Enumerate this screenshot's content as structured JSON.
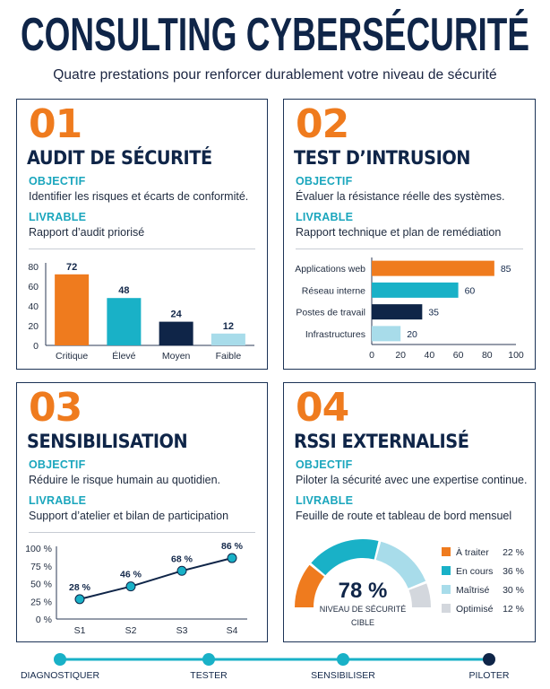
{
  "header": {
    "title": "CONSULTING CYBERSÉCURITÉ",
    "subtitle": "Quatre prestations pour renforcer durablement votre niveau de sécurité"
  },
  "colors": {
    "orange": "#ef7b1e",
    "teal": "#19b1c7",
    "navy": "#0f2548",
    "light_blue": "#a8dcea",
    "grey": "#d3d7dd"
  },
  "cards": [
    {
      "number": "01",
      "title": "AUDIT DE SÉCURITÉ",
      "objective_label": "OBJECTIF",
      "objective": "Identifier les risques et écarts de conformité.",
      "deliverable_label": "LIVRABLE",
      "deliverable": "Rapport d’audit priorisé"
    },
    {
      "number": "02",
      "title": "TEST D’INTRUSION",
      "objective_label": "OBJECTIF",
      "objective": "Évaluer la résistance réelle des systèmes.",
      "deliverable_label": "LIVRABLE",
      "deliverable": "Rapport technique et plan de remédiation"
    },
    {
      "number": "03",
      "title": "SENSIBILISATION",
      "objective_label": "OBJECTIF",
      "objective": "Réduire le risque humain au quotidien.",
      "deliverable_label": "LIVRABLE",
      "deliverable": "Support d’atelier et bilan de participation"
    },
    {
      "number": "04",
      "title": "RSSI EXTERNALISÉ",
      "objective_label": "OBJECTIF",
      "objective": "Piloter la sécurité avec une expertise continue.",
      "deliverable_label": "LIVRABLE",
      "deliverable": "Feuille de route et tableau de bord mensuel"
    }
  ],
  "chart_data": [
    {
      "type": "bar",
      "categories": [
        "Critique",
        "Élevé",
        "Moyen",
        "Faible"
      ],
      "values": [
        72,
        48,
        24,
        12
      ],
      "value_labels": [
        "72",
        "48",
        "24",
        "12"
      ],
      "colors": [
        "#ef7b1e",
        "#19b1c7",
        "#0f2548",
        "#a8dcea"
      ],
      "ylim": [
        0,
        80
      ],
      "yticks": [
        "0",
        "20",
        "40",
        "60",
        "80"
      ]
    },
    {
      "type": "bar",
      "orientation": "horizontal",
      "categories": [
        "Applications web",
        "Réseau interne",
        "Postes de travail",
        "Infrastructures"
      ],
      "values": [
        85,
        60,
        35,
        20
      ],
      "value_labels": [
        "85",
        "60",
        "35",
        "20"
      ],
      "colors": [
        "#ef7b1e",
        "#19b1c7",
        "#0f2548",
        "#a8dcea"
      ],
      "xlim": [
        0,
        100
      ],
      "xticks": [
        "0",
        "20",
        "40",
        "60",
        "80",
        "100"
      ]
    },
    {
      "type": "line",
      "x": [
        "S1",
        "S2",
        "S3",
        "S4"
      ],
      "values": [
        28,
        46,
        68,
        86
      ],
      "value_labels": [
        "28 %",
        "46 %",
        "68 %",
        "86 %"
      ],
      "ylim": [
        0,
        100
      ],
      "yticks": [
        "0 %",
        "25 %",
        "50 %",
        "75 %",
        "100 %"
      ]
    },
    {
      "type": "pie",
      "style": "gauge",
      "center_value": "78 %",
      "center_label_line1": "NIVEAU DE SÉCURITÉ",
      "center_label_line2": "CIBLE",
      "slices": [
        {
          "label": "À traiter",
          "value": 22,
          "display": "22 %",
          "color": "#ef7b1e"
        },
        {
          "label": "En cours",
          "value": 36,
          "display": "36 %",
          "color": "#19b1c7"
        },
        {
          "label": "Maîtrisé",
          "value": 30,
          "display": "30 %",
          "color": "#a8dcea"
        },
        {
          "label": "Optimisé",
          "value": 12,
          "display": "12 %",
          "color": "#d3d7dd"
        }
      ]
    }
  ],
  "timeline": {
    "steps": [
      "DIAGNOSTIQUER",
      "TESTER",
      "SENSIBILISER",
      "PILOTER"
    ]
  }
}
